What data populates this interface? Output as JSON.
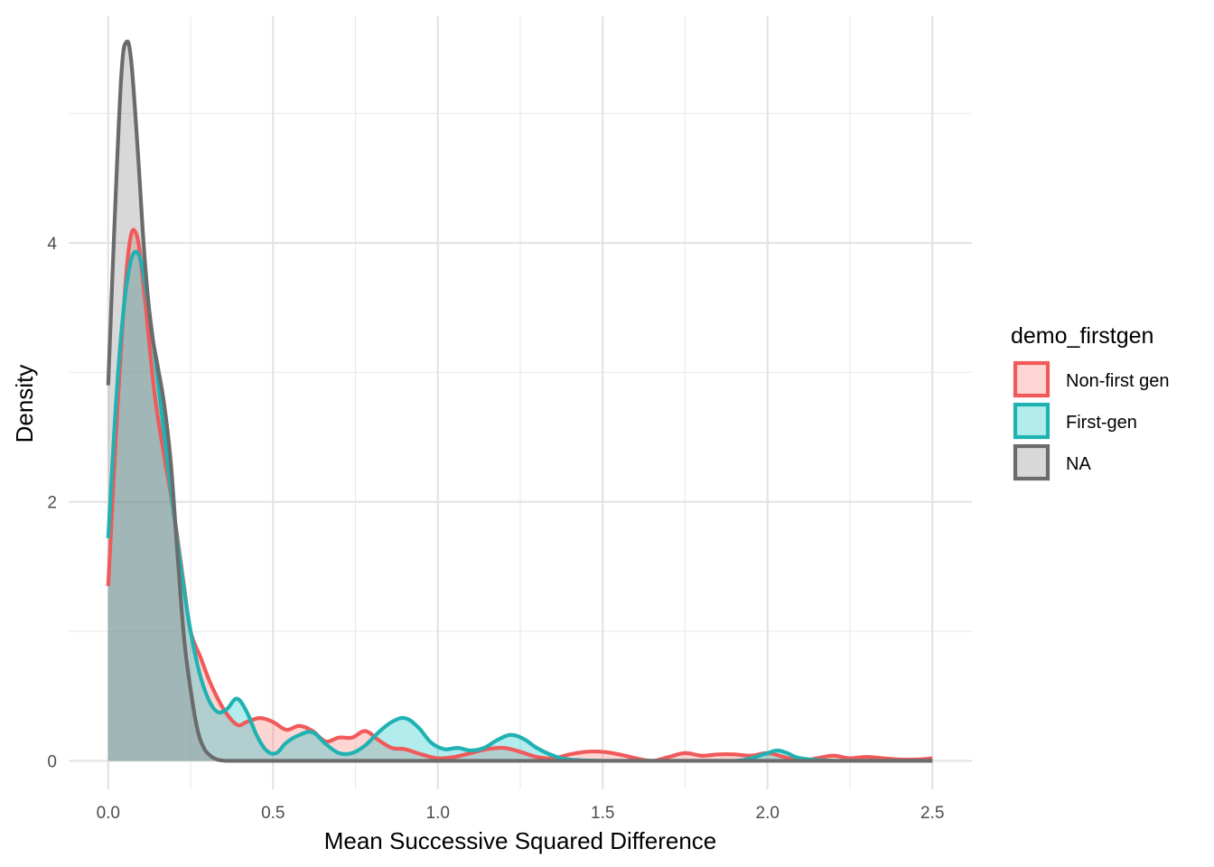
{
  "chart_data": {
    "type": "area",
    "xlabel": "Mean Successive Squared Difference",
    "ylabel": "Density",
    "xlim": [
      -0.12,
      2.62
    ],
    "ylim": [
      -0.22,
      5.75
    ],
    "x_ticks": [
      0.0,
      0.5,
      1.0,
      1.5,
      2.0,
      2.5
    ],
    "x_tick_labels": [
      "0.0",
      "0.5",
      "1.0",
      "1.5",
      "2.0",
      "2.5"
    ],
    "y_ticks": [
      0,
      2,
      4
    ],
    "y_tick_labels": [
      "0",
      "2",
      "4"
    ],
    "grid": true,
    "legend": {
      "title": "demo_firstgen",
      "position": "right"
    },
    "series": [
      {
        "name": "Non-first gen",
        "line_color": "#F05A5A",
        "fill_color": "#F8766D",
        "fill_opacity": 0.3,
        "x": [
          0.0,
          0.03,
          0.06,
          0.085,
          0.11,
          0.14,
          0.17,
          0.2,
          0.23,
          0.25,
          0.28,
          0.31,
          0.35,
          0.39,
          0.42,
          0.46,
          0.5,
          0.54,
          0.58,
          0.62,
          0.66,
          0.7,
          0.74,
          0.78,
          0.82,
          0.86,
          0.9,
          0.95,
          1.0,
          1.05,
          1.1,
          1.15,
          1.2,
          1.25,
          1.3,
          1.35,
          1.4,
          1.45,
          1.5,
          1.55,
          1.6,
          1.65,
          1.7,
          1.75,
          1.8,
          1.85,
          1.9,
          1.95,
          2.0,
          2.05,
          2.1,
          2.15,
          2.2,
          2.25,
          2.3,
          2.35,
          2.4,
          2.45,
          2.5
        ],
        "y": [
          1.35,
          2.8,
          3.9,
          4.07,
          3.6,
          2.85,
          2.35,
          1.9,
          1.35,
          1.0,
          0.8,
          0.6,
          0.4,
          0.28,
          0.3,
          0.33,
          0.3,
          0.24,
          0.27,
          0.23,
          0.15,
          0.18,
          0.18,
          0.23,
          0.16,
          0.1,
          0.09,
          0.05,
          0.02,
          0.03,
          0.06,
          0.09,
          0.1,
          0.07,
          0.03,
          0.02,
          0.05,
          0.07,
          0.07,
          0.05,
          0.02,
          0.0,
          0.03,
          0.06,
          0.04,
          0.05,
          0.05,
          0.04,
          0.06,
          0.03,
          0.0,
          0.02,
          0.04,
          0.02,
          0.03,
          0.02,
          0.01,
          0.01,
          0.02
        ]
      },
      {
        "name": "First-gen",
        "line_color": "#20B2B2",
        "fill_color": "#00BFC4",
        "fill_opacity": 0.3,
        "x": [
          0.0,
          0.03,
          0.06,
          0.09,
          0.12,
          0.15,
          0.18,
          0.21,
          0.24,
          0.27,
          0.3,
          0.33,
          0.36,
          0.39,
          0.42,
          0.45,
          0.48,
          0.51,
          0.54,
          0.58,
          0.62,
          0.66,
          0.7,
          0.74,
          0.78,
          0.82,
          0.86,
          0.9,
          0.94,
          0.98,
          1.02,
          1.06,
          1.1,
          1.14,
          1.18,
          1.22,
          1.26,
          1.3,
          1.35,
          1.4,
          1.5,
          1.6,
          1.7,
          1.8,
          1.9,
          1.95,
          2.0,
          2.03,
          2.06,
          2.1,
          2.2,
          2.3,
          2.4,
          2.5
        ],
        "y": [
          1.72,
          3.0,
          3.75,
          3.92,
          3.55,
          2.95,
          2.3,
          1.7,
          1.15,
          0.75,
          0.5,
          0.38,
          0.4,
          0.48,
          0.38,
          0.2,
          0.08,
          0.06,
          0.14,
          0.2,
          0.22,
          0.13,
          0.06,
          0.06,
          0.12,
          0.22,
          0.3,
          0.33,
          0.26,
          0.14,
          0.09,
          0.1,
          0.08,
          0.1,
          0.16,
          0.2,
          0.17,
          0.1,
          0.04,
          0.01,
          0.0,
          0.0,
          0.0,
          0.0,
          0.0,
          0.02,
          0.06,
          0.08,
          0.06,
          0.02,
          0.0,
          0.0,
          0.0,
          0.0
        ]
      },
      {
        "name": "NA",
        "line_color": "#6B6B6B",
        "fill_color": "#7F7F7F",
        "fill_opacity": 0.3,
        "x": [
          0.0,
          0.02,
          0.04,
          0.055,
          0.07,
          0.09,
          0.11,
          0.13,
          0.15,
          0.17,
          0.19,
          0.21,
          0.23,
          0.25,
          0.27,
          0.29,
          0.31,
          0.33,
          0.36,
          0.4,
          0.5,
          0.7,
          1.0,
          1.5,
          2.0,
          2.5
        ],
        "y": [
          2.9,
          4.2,
          5.3,
          5.55,
          5.4,
          4.7,
          3.9,
          3.35,
          3.05,
          2.75,
          2.3,
          1.6,
          0.95,
          0.55,
          0.25,
          0.1,
          0.04,
          0.01,
          0.0,
          0.0,
          0.0,
          0.0,
          0.0,
          0.0,
          0.0,
          0.0
        ]
      }
    ]
  }
}
